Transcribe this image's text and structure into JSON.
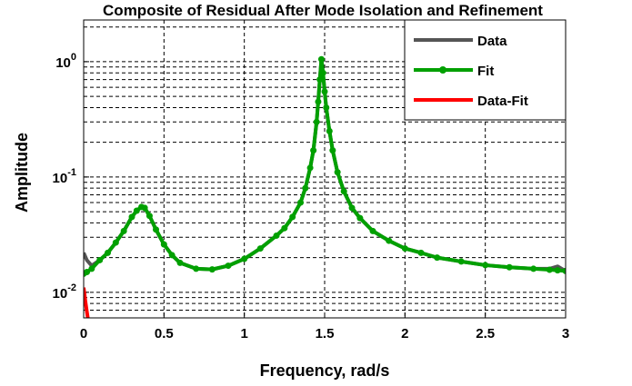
{
  "chart_data": {
    "type": "line",
    "title": "Composite of Residual After Mode Isolation and Refinement",
    "xlabel": "Frequency, rad/s",
    "ylabel": "Amplitude",
    "x": [
      0,
      0.02,
      0.05,
      0.1,
      0.15,
      0.2,
      0.25,
      0.3,
      0.33,
      0.36,
      0.38,
      0.41,
      0.45,
      0.5,
      0.55,
      0.6,
      0.7,
      0.8,
      0.9,
      1.0,
      1.1,
      1.2,
      1.25,
      1.3,
      1.35,
      1.38,
      1.41,
      1.43,
      1.45,
      1.46,
      1.47,
      1.48,
      1.49,
      1.5,
      1.51,
      1.53,
      1.55,
      1.58,
      1.62,
      1.67,
      1.72,
      1.8,
      1.9,
      2.0,
      2.1,
      2.2,
      2.35,
      2.5,
      2.65,
      2.8,
      2.9,
      2.95,
      3.0
    ],
    "series": [
      {
        "name": "Data",
        "color": "#555555",
        "marker": false,
        "values": [
          0.022,
          0.019,
          0.017,
          0.019,
          0.022,
          0.027,
          0.034,
          0.045,
          0.051,
          0.055,
          0.054,
          0.046,
          0.035,
          0.026,
          0.021,
          0.018,
          0.016,
          0.0158,
          0.017,
          0.0195,
          0.024,
          0.031,
          0.036,
          0.045,
          0.06,
          0.08,
          0.12,
          0.17,
          0.3,
          0.45,
          0.7,
          1.05,
          0.8,
          0.55,
          0.4,
          0.25,
          0.17,
          0.11,
          0.075,
          0.054,
          0.044,
          0.034,
          0.028,
          0.024,
          0.022,
          0.02,
          0.0185,
          0.0172,
          0.0165,
          0.016,
          0.016,
          0.0168,
          0.0153
        ]
      },
      {
        "name": "Fit",
        "color": "#00a000",
        "marker": true,
        "values": [
          0.0145,
          0.015,
          0.016,
          0.019,
          0.022,
          0.027,
          0.034,
          0.045,
          0.051,
          0.055,
          0.054,
          0.046,
          0.035,
          0.026,
          0.021,
          0.018,
          0.016,
          0.0158,
          0.017,
          0.0195,
          0.024,
          0.031,
          0.036,
          0.045,
          0.06,
          0.08,
          0.12,
          0.17,
          0.3,
          0.45,
          0.7,
          1.05,
          0.8,
          0.55,
          0.4,
          0.25,
          0.17,
          0.11,
          0.075,
          0.054,
          0.044,
          0.034,
          0.028,
          0.024,
          0.022,
          0.02,
          0.0185,
          0.0172,
          0.0165,
          0.016,
          0.0157,
          0.0155,
          0.0153
        ]
      },
      {
        "name": "Data-Fit",
        "color": "#ff0000",
        "marker": false,
        "x": [
          0,
          0.01,
          0.02,
          0.03,
          0.04
        ],
        "values": [
          0.011,
          0.0085,
          0.0068,
          0.0055,
          0.0045
        ]
      }
    ],
    "xlim": [
      0,
      3
    ],
    "xticks": [
      0,
      0.5,
      1,
      1.5,
      2,
      2.5,
      3
    ],
    "ylim": [
      0.006,
      2.3
    ],
    "log_y": true,
    "yticks": [
      {
        "value": 0.01,
        "label": "10^-2"
      },
      {
        "value": 0.1,
        "label": "10^-1"
      },
      {
        "value": 1,
        "label": "10^0"
      }
    ],
    "yticks_minor": [
      0.006,
      0.007,
      0.008,
      0.009,
      0.02,
      0.03,
      0.04,
      0.05,
      0.06,
      0.07,
      0.08,
      0.09,
      0.2,
      0.3,
      0.4,
      0.5,
      0.6,
      0.7,
      0.8,
      0.9,
      2
    ],
    "grid": true,
    "legend": "northeast"
  }
}
